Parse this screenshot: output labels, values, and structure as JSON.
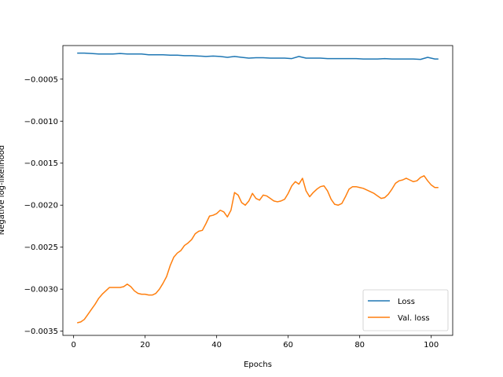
{
  "chart_data": {
    "type": "line",
    "xlabel": "Epochs",
    "ylabel": "Negative log-likelihood",
    "xlim": [
      -3.0,
      106.0
    ],
    "ylim": [
      -0.00355,
      -0.0001
    ],
    "xticks": [
      0,
      20,
      40,
      60,
      80,
      100
    ],
    "xtick_labels": [
      "0",
      "20",
      "40",
      "60",
      "80",
      "100"
    ],
    "yticks": [
      -0.0005,
      -0.001,
      -0.0015,
      -0.002,
      -0.0025,
      -0.003,
      -0.0035
    ],
    "ytick_labels": [
      "−0.0005",
      "−0.0010",
      "−0.0015",
      "−0.0020",
      "−0.0025",
      "−0.0030",
      "−0.0035"
    ],
    "grid": false,
    "legend_position": "lower right",
    "series": [
      {
        "name": "Loss",
        "color": "#1f77b4",
        "x": [
          1,
          3,
          5,
          7,
          9,
          11,
          13,
          15,
          17,
          19,
          21,
          23,
          25,
          27,
          29,
          31,
          33,
          35,
          37,
          39,
          41,
          43,
          45,
          47,
          49,
          51,
          53,
          55,
          57,
          59,
          61,
          63,
          65,
          67,
          69,
          71,
          73,
          75,
          77,
          79,
          81,
          83,
          85,
          87,
          89,
          91,
          93,
          95,
          97,
          99,
          101,
          102
        ],
        "values": [
          -0.00019,
          -0.00019,
          -0.000195,
          -0.0002,
          -0.0002,
          -0.0002,
          -0.000195,
          -0.0002,
          -0.0002,
          -0.0002,
          -0.00021,
          -0.00021,
          -0.00021,
          -0.000215,
          -0.000215,
          -0.00022,
          -0.00022,
          -0.000225,
          -0.00023,
          -0.000225,
          -0.00023,
          -0.00024,
          -0.00023,
          -0.00024,
          -0.00025,
          -0.000245,
          -0.000245,
          -0.00025,
          -0.00025,
          -0.00025,
          -0.000255,
          -0.00023,
          -0.00025,
          -0.00025,
          -0.00025,
          -0.000255,
          -0.000255,
          -0.000255,
          -0.000255,
          -0.000255,
          -0.00026,
          -0.00026,
          -0.00026,
          -0.000255,
          -0.00026,
          -0.00026,
          -0.00026,
          -0.00026,
          -0.000265,
          -0.00024,
          -0.00026,
          -0.00026
        ]
      },
      {
        "name": "Val. loss",
        "color": "#ff7f0e",
        "x": [
          1,
          2,
          3,
          4,
          5,
          6,
          7,
          8,
          9,
          10,
          11,
          12,
          13,
          14,
          15,
          16,
          17,
          18,
          19,
          20,
          21,
          22,
          23,
          24,
          25,
          26,
          27,
          28,
          29,
          30,
          31,
          32,
          33,
          34,
          35,
          36,
          37,
          38,
          39,
          40,
          41,
          42,
          43,
          44,
          45,
          46,
          47,
          48,
          49,
          50,
          51,
          52,
          53,
          54,
          55,
          56,
          57,
          58,
          59,
          60,
          61,
          62,
          63,
          64,
          65,
          66,
          67,
          68,
          69,
          70,
          71,
          72,
          73,
          74,
          75,
          76,
          77,
          78,
          79,
          80,
          81,
          82,
          83,
          84,
          85,
          86,
          87,
          88,
          89,
          90,
          91,
          92,
          93,
          94,
          95,
          96,
          97,
          98,
          99,
          100,
          101,
          102
        ],
        "values": [
          -0.0034,
          -0.00339,
          -0.00336,
          -0.0033,
          -0.00324,
          -0.00318,
          -0.00311,
          -0.00306,
          -0.00302,
          -0.00298,
          -0.00298,
          -0.00298,
          -0.00298,
          -0.00297,
          -0.00294,
          -0.00297,
          -0.00302,
          -0.00305,
          -0.00306,
          -0.00306,
          -0.00307,
          -0.00307,
          -0.00305,
          -0.003,
          -0.00293,
          -0.00285,
          -0.00272,
          -0.00262,
          -0.00257,
          -0.00254,
          -0.00248,
          -0.00245,
          -0.00241,
          -0.00234,
          -0.00231,
          -0.0023,
          -0.00222,
          -0.00213,
          -0.00212,
          -0.0021,
          -0.00206,
          -0.00208,
          -0.00214,
          -0.00206,
          -0.00185,
          -0.00188,
          -0.00197,
          -0.002,
          -0.00195,
          -0.00186,
          -0.00192,
          -0.00194,
          -0.00188,
          -0.00189,
          -0.00192,
          -0.00195,
          -0.00196,
          -0.00195,
          -0.00193,
          -0.00186,
          -0.00177,
          -0.00172,
          -0.00175,
          -0.00168,
          -0.00183,
          -0.0019,
          -0.00185,
          -0.00181,
          -0.00178,
          -0.00177,
          -0.00183,
          -0.00193,
          -0.00199,
          -0.002,
          -0.00198,
          -0.0019,
          -0.00181,
          -0.00178,
          -0.00178,
          -0.00179,
          -0.0018,
          -0.00182,
          -0.00184,
          -0.00186,
          -0.00189,
          -0.00192,
          -0.00191,
          -0.00187,
          -0.00181,
          -0.00174,
          -0.00171,
          -0.0017,
          -0.00168,
          -0.0017,
          -0.00172,
          -0.00171,
          -0.00167,
          -0.00165,
          -0.00171,
          -0.00176,
          -0.00179,
          -0.00179
        ]
      }
    ]
  }
}
